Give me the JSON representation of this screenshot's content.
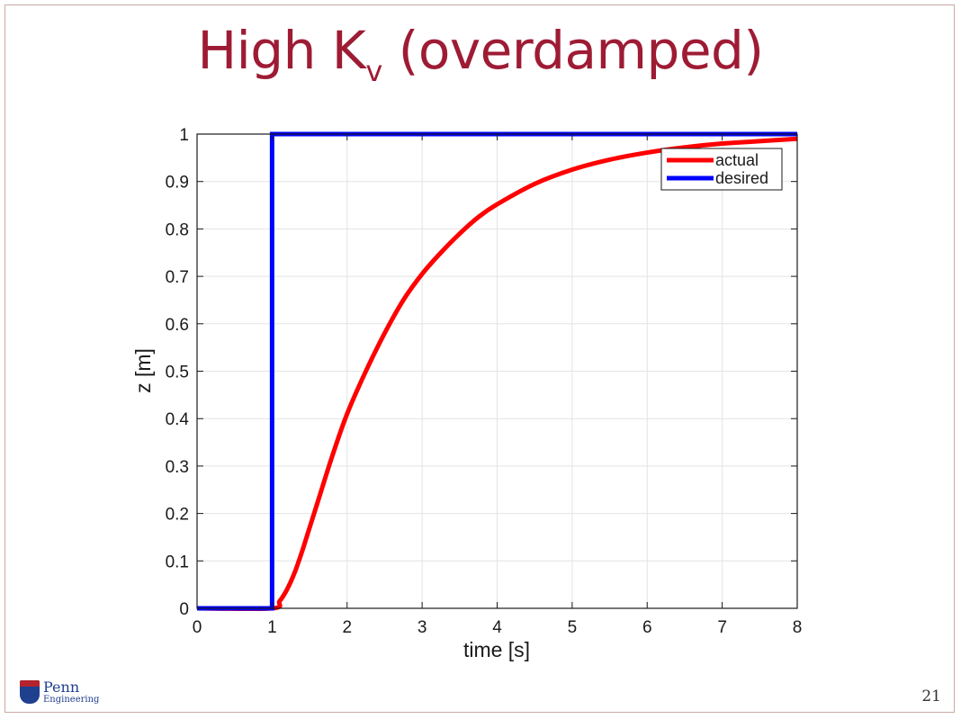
{
  "slide": {
    "title_main": "High K",
    "title_sub": "v",
    "title_rest": " (overdamped)",
    "page_number": "21",
    "logo": {
      "icon": "penn-shield-icon",
      "penn": "Penn",
      "engineering": "Engineering"
    }
  },
  "chart_data": {
    "type": "line",
    "title": "",
    "xlabel": "time [s]",
    "ylabel": "z [m]",
    "xlim": [
      0,
      8
    ],
    "ylim": [
      0,
      1
    ],
    "xticks": [
      0,
      1,
      2,
      3,
      4,
      5,
      6,
      7,
      8
    ],
    "yticks": [
      0,
      0.1,
      0.2,
      0.3,
      0.4,
      0.5,
      0.6,
      0.7,
      0.8,
      0.9,
      1
    ],
    "ytick_labels": [
      "0",
      "0.1",
      "0.2",
      "0.3",
      "0.4",
      "0.5",
      "0.6",
      "0.7",
      "0.8",
      "0.9",
      "1"
    ],
    "grid": true,
    "legend_position": "top-right",
    "series": [
      {
        "name": "actual",
        "color": "#ff0000",
        "x": [
          0,
          1,
          1.1,
          1.2,
          1.3,
          1.4,
          1.5,
          1.6,
          1.8,
          2,
          2.25,
          2.5,
          2.75,
          3,
          3.25,
          3.5,
          3.75,
          4,
          4.5,
          5,
          5.5,
          6,
          6.5,
          7,
          7.5,
          8
        ],
        "y": [
          0,
          0,
          0.015,
          0.04,
          0.075,
          0.12,
          0.17,
          0.22,
          0.32,
          0.41,
          0.5,
          0.58,
          0.65,
          0.705,
          0.75,
          0.79,
          0.825,
          0.852,
          0.895,
          0.925,
          0.946,
          0.961,
          0.972,
          0.98,
          0.985,
          0.99
        ]
      },
      {
        "name": "desired",
        "color": "#0000ff",
        "x": [
          0,
          1,
          1,
          8
        ],
        "y": [
          0,
          0,
          1,
          1
        ]
      }
    ]
  }
}
